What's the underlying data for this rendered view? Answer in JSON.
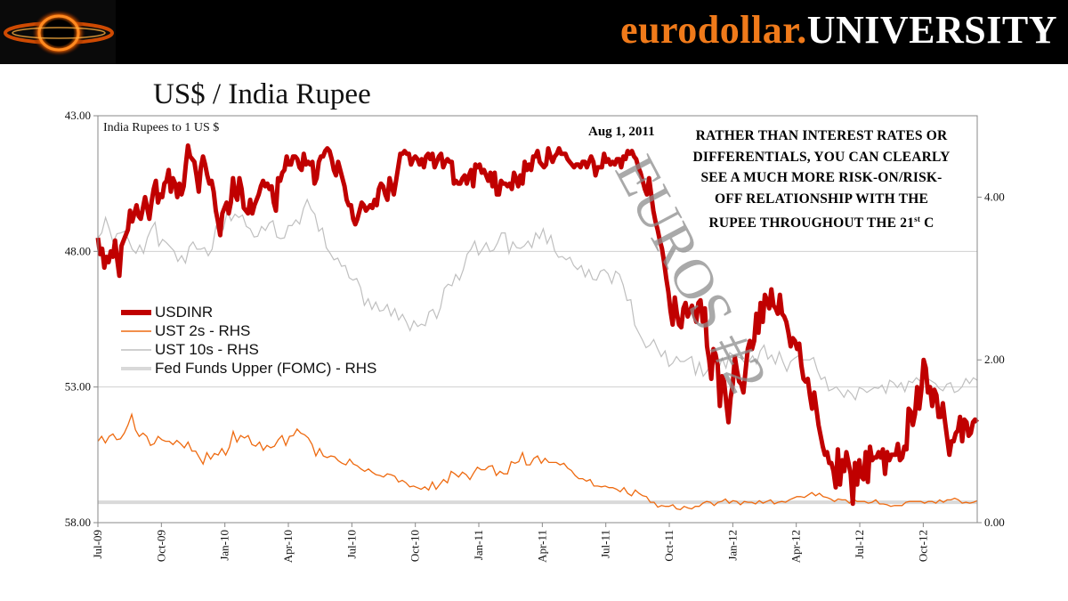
{
  "header": {
    "brand_part1": "eurodollar.",
    "brand_part2": "UNIVERSITY"
  },
  "colors": {
    "usdinr": "#c00000",
    "ust2s": "#ee6a10",
    "ust10s": "#bfbfbf",
    "fedfunds": "#d9d9d9",
    "watermark": "#8c8c8c"
  },
  "chart_data": {
    "type": "line",
    "title": "US$ / India Rupee",
    "subtitle": "India Rupees to 1 US $",
    "annotation_date": "Aug 1, 2011",
    "annotation_note_lines": [
      "RATHER THAN INTEREST RATES OR",
      "DIFFERENTIALS, YOU CAN CLEARLY",
      "SEE A MUCH MORE RISK-ON/RISK-",
      "OFF RELATIONSHIP WITH THE",
      "RUPEE THROUGHOUT THE 21"
    ],
    "annotation_note_suffix_sup": "st",
    "annotation_note_suffix": " C",
    "watermark": "EUROS #2",
    "x_tick_labels": [
      "Jul-09",
      "Oct-09",
      "Jan-10",
      "Apr-10",
      "Jul-10",
      "Oct-10",
      "Jan-11",
      "Apr-11",
      "Jul-11",
      "Oct-11",
      "Jan-12",
      "Apr-12",
      "Jul-12",
      "Oct-12"
    ],
    "left_axis": {
      "inverted": true,
      "range": [
        43,
        58
      ],
      "tick_labels": [
        "43.00",
        "48.00",
        "53.00",
        "58.00"
      ]
    },
    "right_axis": {
      "range": [
        0,
        5
      ],
      "tick_labels": [
        "0.00",
        "2.00",
        "4.00"
      ]
    },
    "grid": "horizontal at 48 and 53",
    "legend_position": "middle-left",
    "series": [
      {
        "name": "USDINR",
        "axis": "left",
        "values": [
          47.5,
          48.1,
          47.9,
          48.6,
          48.2,
          48.4,
          48.0,
          48.2,
          47.6,
          48.3,
          48.9,
          47.8,
          47.6,
          47.4,
          47.2,
          46.5,
          46.9,
          46.6,
          46.3,
          46.7,
          46.8,
          46.4,
          46.0,
          46.4,
          46.8,
          46.2,
          45.7,
          45.4,
          46.2,
          45.9,
          46.0,
          45.5,
          45.4,
          45.0,
          45.8,
          45.3,
          45.5,
          46.0,
          45.5,
          45.9,
          45.6,
          44.8,
          44.1,
          44.5,
          44.6,
          44.7,
          45.2,
          45.8,
          44.9,
          44.5,
          44.8,
          45.2,
          45.5,
          45.4,
          45.8,
          46.5,
          46.9,
          47.4,
          46.6,
          46.4,
          46.2,
          46.6,
          46.2,
          45.3,
          45.9,
          46.1,
          45.3,
          45.7,
          46.4,
          46.5,
          46.6,
          46.1,
          46.6,
          46.3,
          46.1,
          45.9,
          45.6,
          45.4,
          45.6,
          45.5,
          45.7,
          45.6,
          46.2,
          46.5,
          45.3,
          45.4,
          45.1,
          45.0,
          44.5,
          44.8,
          44.8,
          44.5,
          44.5,
          44.6,
          44.9,
          45.0,
          44.4,
          44.8,
          44.7,
          44.8,
          44.7,
          45.5,
          45.3,
          44.7,
          44.5,
          44.5,
          44.3,
          44.2,
          44.3,
          44.6,
          45.0,
          45.2,
          44.7,
          45.0,
          45.3,
          45.6,
          46.1,
          46.3,
          46.3,
          46.8,
          47.0,
          46.8,
          46.5,
          46.2,
          46.3,
          46.5,
          46.4,
          46.3,
          46.4,
          46.1,
          46.3,
          45.7,
          45.5,
          45.6,
          45.9,
          46.1,
          45.3,
          45.6,
          45.9,
          45.4,
          44.9,
          44.4,
          44.4,
          44.3,
          44.4,
          44.4,
          44.8,
          44.6,
          44.5,
          44.6,
          44.8,
          44.6,
          44.9,
          44.5,
          44.4,
          44.6,
          44.4,
          44.9,
          44.7,
          44.5,
          44.4,
          44.9,
          44.7,
          44.6,
          44.7,
          44.7,
          45.5,
          45.4,
          45.5,
          45.5,
          45.3,
          45.2,
          45.5,
          45.2,
          45.0,
          45.6,
          44.8,
          44.9,
          44.8,
          45.1,
          45.0,
          45.2,
          45.4,
          45.1,
          45.6,
          45.1,
          45.9,
          45.9,
          45.4,
          45.5,
          45.5,
          45.6,
          45.5,
          45.7,
          45.1,
          45.3,
          45.6,
          45.2,
          45.5,
          44.7,
          45.0,
          44.8,
          45.0,
          44.5,
          44.5,
          44.3,
          44.7,
          44.8,
          44.9,
          44.8,
          44.2,
          44.5,
          44.7,
          44.5,
          44.4,
          44.2,
          44.4,
          44.4,
          44.4,
          44.6,
          44.7,
          44.8,
          44.9,
          44.8,
          44.8,
          44.9,
          44.7,
          44.7,
          44.9,
          44.7,
          44.5,
          44.7,
          45.2,
          44.9,
          44.9,
          44.9,
          44.4,
          44.7,
          44.6,
          44.8,
          44.7,
          44.8,
          44.6,
          44.6,
          44.9,
          44.5,
          44.6,
          44.3,
          44.4,
          44.3,
          44.5,
          44.6,
          44.9,
          45.1,
          45.4,
          45.7,
          45.9,
          45.3,
          45.9,
          46.5,
          46.9,
          47.2,
          47.6,
          47.9,
          48.4,
          49.0,
          49.5,
          50.2,
          50.7,
          49.7,
          50.3,
          50.7,
          50.8,
          50.1,
          49.9,
          50.4,
          50.2,
          50.0,
          50.3,
          50.6,
          49.9,
          49.8,
          50.6,
          50.1,
          51.5,
          52.0,
          52.7,
          51.6,
          51.8,
          52.2,
          53.7,
          52.6,
          52.8,
          53.6,
          54.3,
          53.4,
          52.9,
          51.9,
          52.4,
          52.8,
          52.9,
          53.2,
          52.4,
          51.6,
          51.3,
          51.6,
          51.3,
          50.3,
          51.0,
          49.9,
          50.6,
          49.6,
          49.8,
          50.1,
          49.4,
          50.0,
          50.1,
          50.3,
          49.6,
          50.3,
          50.4,
          50.6,
          51.0,
          51.5,
          51.2,
          51.3,
          51.6,
          51.4,
          52.2,
          52.7,
          52.8,
          52.7,
          53.3,
          53.8,
          53.2,
          53.8,
          54.4,
          54.8,
          55.2,
          55.5,
          55.4,
          55.8,
          55.8,
          56.1,
          56.7,
          55.3,
          56.6,
          55.7,
          56.1,
          55.4,
          55.8,
          56.2,
          57.3,
          55.8,
          56.6,
          55.7,
          56.3,
          56.4,
          55.4,
          56.5,
          55.2,
          55.7,
          55.6,
          55.6,
          55.4,
          55.6,
          55.3,
          56.2,
          55.4,
          55.7,
          55.5,
          55.5,
          55.5,
          55.1,
          55.7,
          55.6,
          55.2,
          55.3,
          53.8,
          53.9,
          54.4,
          54.0,
          53.0,
          53.8,
          53.1,
          52.0,
          52.3,
          53.2,
          53.0,
          53.7,
          53.1,
          53.3,
          54.1,
          54.1,
          53.6,
          54.3,
          54.9,
          55.5,
          55.0,
          55.0,
          54.7,
          54.6,
          54.1,
          55.0,
          54.2,
          54.3,
          54.8,
          54.7,
          54.3,
          54.2,
          54.3
        ]
      },
      {
        "name": "UST 2s - RHS",
        "axis": "right",
        "values": [
          1.0,
          1.06,
          0.98,
          1.06,
          1.09,
          1.02,
          1.03,
          1.1,
          1.2,
          1.33,
          1.14,
          1.06,
          1.1,
          1.06,
          0.95,
          0.97,
          1.06,
          1.02,
          1.0,
          1.0,
          0.96,
          1.01,
          0.97,
          0.92,
          0.99,
          0.88,
          0.88,
          0.8,
          0.72,
          0.86,
          0.78,
          0.85,
          0.83,
          0.91,
          0.83,
          0.93,
          1.12,
          0.99,
          1.07,
          1.04,
          1.07,
          0.96,
          0.94,
          0.99,
          0.89,
          0.95,
          0.92,
          0.94,
          1.02,
          1.07,
          0.95,
          1.06,
          1.07,
          1.15,
          1.1,
          1.08,
          1.04,
          0.96,
          0.82,
          0.91,
          0.82,
          0.8,
          0.82,
          0.81,
          0.76,
          0.73,
          0.71,
          0.78,
          0.72,
          0.7,
          0.66,
          0.63,
          0.66,
          0.62,
          0.59,
          0.58,
          0.56,
          0.6,
          0.59,
          0.57,
          0.5,
          0.52,
          0.49,
          0.44,
          0.45,
          0.43,
          0.41,
          0.44,
          0.4,
          0.5,
          0.41,
          0.47,
          0.53,
          0.49,
          0.63,
          0.6,
          0.56,
          0.62,
          0.59,
          0.53,
          0.61,
          0.68,
          0.65,
          0.65,
          0.69,
          0.7,
          0.58,
          0.63,
          0.6,
          0.6,
          0.75,
          0.73,
          0.75,
          0.86,
          0.71,
          0.71,
          0.79,
          0.82,
          0.73,
          0.79,
          0.74,
          0.74,
          0.74,
          0.71,
          0.73,
          0.67,
          0.64,
          0.58,
          0.54,
          0.54,
          0.51,
          0.53,
          0.45,
          0.45,
          0.44,
          0.45,
          0.43,
          0.43,
          0.41,
          0.38,
          0.43,
          0.36,
          0.33,
          0.4,
          0.36,
          0.33,
          0.32,
          0.25,
          0.25,
          0.19,
          0.21,
          0.2,
          0.2,
          0.22,
          0.17,
          0.16,
          0.2,
          0.18,
          0.17,
          0.2,
          0.2,
          0.24,
          0.26,
          0.25,
          0.21,
          0.25,
          0.26,
          0.29,
          0.24,
          0.27,
          0.26,
          0.22,
          0.26,
          0.25,
          0.25,
          0.23,
          0.27,
          0.24,
          0.26,
          0.28,
          0.23,
          0.25,
          0.26,
          0.25,
          0.28,
          0.3,
          0.32,
          0.32,
          0.31,
          0.34,
          0.37,
          0.33,
          0.36,
          0.32,
          0.31,
          0.29,
          0.26,
          0.29,
          0.28,
          0.28,
          0.24,
          0.29,
          0.26,
          0.26,
          0.26,
          0.24,
          0.25,
          0.28,
          0.23,
          0.23,
          0.22,
          0.2,
          0.21,
          0.21,
          0.21,
          0.25,
          0.26,
          0.26,
          0.26,
          0.26,
          0.24,
          0.26,
          0.26,
          0.24,
          0.28,
          0.25,
          0.28,
          0.28,
          0.3,
          0.28,
          0.24,
          0.25,
          0.24,
          0.25,
          0.27
        ]
      },
      {
        "name": "UST 10s - RHS",
        "axis": "right",
        "values": [
          3.5,
          3.56,
          3.75,
          3.61,
          3.44,
          3.55,
          3.56,
          3.58,
          3.48,
          3.36,
          3.31,
          3.41,
          3.31,
          3.5,
          3.61,
          3.69,
          3.4,
          3.48,
          3.44,
          3.39,
          3.34,
          3.21,
          3.28,
          3.19,
          3.39,
          3.45,
          3.36,
          3.36,
          3.38,
          3.28,
          3.36,
          3.64,
          3.54,
          3.61,
          3.83,
          3.71,
          3.79,
          3.75,
          3.78,
          3.64,
          3.61,
          3.51,
          3.52,
          3.64,
          3.59,
          3.68,
          3.71,
          3.51,
          3.49,
          3.5,
          3.65,
          3.65,
          3.72,
          3.67,
          3.86,
          3.97,
          3.85,
          3.79,
          3.58,
          3.62,
          3.38,
          3.31,
          3.23,
          3.25,
          3.15,
          3.16,
          3.01,
          2.98,
          3.0,
          2.89,
          2.67,
          2.75,
          2.62,
          2.71,
          2.6,
          2.61,
          2.68,
          2.54,
          2.63,
          2.49,
          2.56,
          2.47,
          2.36,
          2.48,
          2.41,
          2.44,
          2.42,
          2.59,
          2.62,
          2.51,
          2.64,
          2.88,
          2.93,
          2.91,
          3.05,
          2.98,
          3.11,
          3.3,
          3.36,
          3.46,
          3.29,
          3.36,
          3.44,
          3.33,
          3.35,
          3.44,
          3.56,
          3.56,
          3.31,
          3.45,
          3.38,
          3.37,
          3.4,
          3.46,
          3.38,
          3.56,
          3.49,
          3.61,
          3.43,
          3.53,
          3.34,
          3.26,
          3.27,
          3.23,
          3.26,
          3.16,
          3.11,
          3.16,
          3.02,
          3.11,
          2.99,
          2.98,
          3.09,
          3.11,
          3.06,
          2.94,
          3.09,
          3.05,
          2.92,
          2.73,
          2.74,
          2.43,
          2.34,
          2.25,
          2.15,
          2.18,
          2.25,
          2.14,
          2.04,
          2.11,
          1.92,
          1.96,
          2.04,
          1.98,
          1.98,
          2.01,
          2.04,
          1.82,
          1.97,
          1.8,
          1.86,
          1.95,
          2.01,
          1.88,
          2.02,
          1.9,
          2.09,
          2.05,
          2.04,
          2.02,
          1.96,
          1.98,
          2.05,
          1.95,
          2.11,
          2.18,
          2.01,
          2.06,
          1.95,
          2.1,
          1.97,
          1.86,
          1.98,
          2.02,
          2.05,
          2.0,
          2.0,
          2.0,
          2.03,
          1.87,
          1.76,
          1.79,
          1.62,
          1.64,
          1.67,
          1.61,
          1.54,
          1.63,
          1.58,
          1.51,
          1.66,
          1.64,
          1.6,
          1.63,
          1.66,
          1.65,
          1.69,
          1.59,
          1.75,
          1.72,
          1.66,
          1.72,
          1.61,
          1.74,
          1.72,
          1.78,
          1.74,
          1.81,
          1.77,
          1.74,
          1.71,
          1.65,
          1.62,
          1.7,
          1.72,
          1.6,
          1.62,
          1.67,
          1.77,
          1.71,
          1.78,
          1.75
        ]
      },
      {
        "name": "Fed Funds Upper (FOMC) - RHS",
        "axis": "right",
        "values": [
          0.25,
          0.25
        ]
      }
    ]
  }
}
